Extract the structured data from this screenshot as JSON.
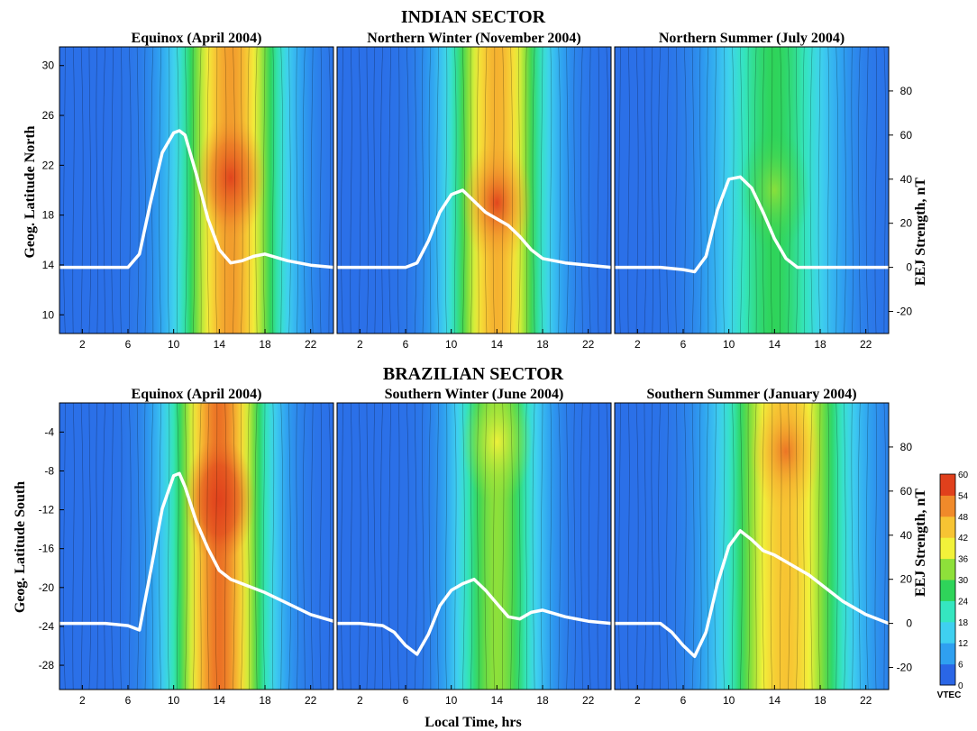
{
  "figure": {
    "sector_titles": [
      "INDIAN SECTOR",
      "BRAZILIAN SECTOR"
    ],
    "xlabel": "Local Time, hrs",
    "ylabel_north": "Geog. Latitude North",
    "ylabel_south": "Geog. Latitude South",
    "ylabel_right": "EEJ Strength, nT",
    "colorbar": {
      "label": "VTEC",
      "ticks": [
        0,
        6,
        12,
        18,
        24,
        30,
        36,
        42,
        48,
        54,
        60
      ],
      "colors": [
        "#1a2fc8",
        "#2a66e6",
        "#2fa0f0",
        "#3fd0f0",
        "#35e6c0",
        "#2fd45a",
        "#8ee03a",
        "#f2f23a",
        "#f7c433",
        "#f08a2a",
        "#e0401c"
      ]
    }
  },
  "chart_data": [
    {
      "type": "heatmap",
      "title": "Equinox (April 2004)",
      "sector": "INDIAN SECTOR",
      "x_ticks": [
        2,
        6,
        10,
        14,
        18,
        22
      ],
      "y_ticks": [
        10,
        14,
        18,
        22,
        26,
        30
      ],
      "y_range": [
        8.5,
        31.5
      ],
      "eej_ticks": [],
      "eej_range": [
        -30,
        100
      ],
      "vtec_peak": 52,
      "peak_x": 15,
      "peak_y": 21,
      "width": 3.0,
      "hump": 16,
      "eej": {
        "x": [
          0,
          2,
          4,
          6,
          7,
          8,
          9,
          10,
          10.5,
          11,
          12,
          13,
          14,
          15,
          16,
          17,
          18,
          20,
          22,
          24
        ],
        "y": [
          0,
          0,
          0,
          0,
          6,
          30,
          52,
          61,
          62,
          60,
          42,
          22,
          8,
          2,
          3,
          5,
          6,
          3,
          1,
          0
        ]
      }
    },
    {
      "type": "heatmap",
      "title": "Northern Winter (November 2004)",
      "sector": "INDIAN SECTOR",
      "x_ticks": [
        2,
        6,
        10,
        14,
        18,
        22
      ],
      "y_ticks": [],
      "y_range": [
        8.5,
        31.5
      ],
      "eej_ticks": [],
      "eej_range": [
        -30,
        100
      ],
      "vtec_peak": 50,
      "peak_x": 14,
      "peak_y": 19,
      "width": 2.8,
      "hump": 12,
      "eej": {
        "x": [
          0,
          2,
          4,
          6,
          7,
          8,
          9,
          10,
          11,
          12,
          13,
          14,
          15,
          16,
          17,
          18,
          20,
          22,
          24
        ],
        "y": [
          0,
          0,
          0,
          0,
          2,
          12,
          25,
          33,
          35,
          30,
          25,
          22,
          19,
          14,
          8,
          4,
          2,
          1,
          0
        ]
      }
    },
    {
      "type": "heatmap",
      "title": "Northern Summer (July 2004)",
      "sector": "INDIAN SECTOR",
      "x_ticks": [
        2,
        6,
        10,
        14,
        18,
        22
      ],
      "y_ticks": [],
      "y_range": [
        8.5,
        31.5
      ],
      "eej_ticks": [
        -20,
        0,
        20,
        40,
        60,
        80
      ],
      "eej_range": [
        -30,
        100
      ],
      "vtec_peak": 30,
      "peak_x": 14,
      "peak_y": 20,
      "width": 3.4,
      "hump": 6,
      "eej": {
        "x": [
          0,
          2,
          4,
          6,
          7,
          8,
          9,
          10,
          11,
          12,
          13,
          14,
          15,
          16,
          17,
          18,
          20,
          22,
          24
        ],
        "y": [
          0,
          0,
          0,
          -1,
          -2,
          5,
          26,
          40,
          41,
          36,
          25,
          13,
          4,
          0,
          0,
          0,
          0,
          0,
          0
        ]
      }
    },
    {
      "type": "heatmap",
      "title": "Equinox (April 2004)",
      "sector": "BRAZILIAN SECTOR",
      "x_ticks": [
        2,
        6,
        10,
        14,
        18,
        22
      ],
      "y_ticks": [
        -4,
        -8,
        -12,
        -16,
        -20,
        -24,
        -28
      ],
      "y_range": [
        -30.5,
        -1
      ],
      "eej_ticks": [],
      "eej_range": [
        -30,
        100
      ],
      "vtec_peak": 56,
      "peak_x": 14,
      "peak_y": -11,
      "width": 2.8,
      "hump": 14,
      "eej": {
        "x": [
          0,
          2,
          4,
          6,
          7,
          8,
          9,
          10,
          10.5,
          11,
          12,
          13,
          14,
          15,
          16,
          17,
          18,
          20,
          22,
          24
        ],
        "y": [
          0,
          0,
          0,
          -1,
          -3,
          24,
          52,
          67,
          68,
          62,
          46,
          34,
          24,
          20,
          18,
          16,
          14,
          9,
          4,
          1
        ]
      }
    },
    {
      "type": "heatmap",
      "title": "Southern Winter (June 2004)",
      "sector": "BRAZILIAN SECTOR",
      "x_ticks": [
        2,
        6,
        10,
        14,
        18,
        22
      ],
      "y_ticks": [],
      "y_range": [
        -30.5,
        -1
      ],
      "eej_ticks": [],
      "eej_range": [
        -30,
        100
      ],
      "vtec_peak": 36,
      "peak_x": 14,
      "peak_y": -5,
      "width": 2.5,
      "hump": 6,
      "eej": {
        "x": [
          0,
          2,
          4,
          5,
          6,
          7,
          8,
          9,
          10,
          11,
          12,
          13,
          14,
          15,
          16,
          17,
          18,
          20,
          22,
          24
        ],
        "y": [
          0,
          0,
          -1,
          -4,
          -10,
          -14,
          -5,
          8,
          15,
          18,
          20,
          15,
          9,
          3,
          2,
          5,
          6,
          3,
          1,
          0
        ]
      }
    },
    {
      "type": "heatmap",
      "title": "Southern Summer (January 2004)",
      "sector": "BRAZILIAN SECTOR",
      "x_ticks": [
        2,
        6,
        10,
        14,
        18,
        22
      ],
      "y_ticks": [],
      "y_range": [
        -30.5,
        -1
      ],
      "eej_ticks": [
        -20,
        0,
        20,
        40,
        60,
        80
      ],
      "eej_range": [
        -30,
        100
      ],
      "vtec_peak": 48,
      "peak_x": 15,
      "peak_y": -6,
      "width": 3.6,
      "hump": 8,
      "eej": {
        "x": [
          0,
          2,
          4,
          5,
          6,
          7,
          8,
          9,
          10,
          11,
          12,
          13,
          14,
          15,
          16,
          17,
          18,
          20,
          22,
          24
        ],
        "y": [
          0,
          0,
          0,
          -4,
          -10,
          -15,
          -4,
          18,
          35,
          42,
          38,
          33,
          31,
          28,
          25,
          22,
          18,
          10,
          4,
          0
        ]
      }
    }
  ]
}
